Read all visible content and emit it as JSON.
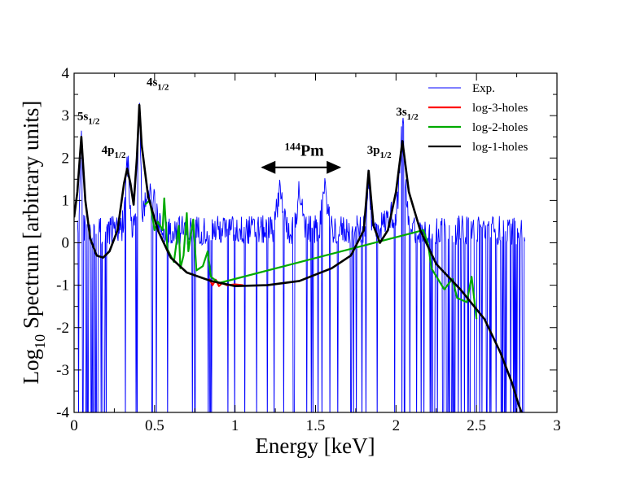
{
  "chart_data": {
    "type": "line",
    "title": "",
    "xlabel": "Energy [keV]",
    "ylabel": {
      "main": "Log",
      "sub": "10",
      "rest": " Spectrum [arbitrary units]"
    },
    "xlim": [
      0,
      3
    ],
    "ylim": [
      -4,
      4
    ],
    "x_ticks": [
      "0",
      "0.5",
      "1",
      "1.5",
      "2",
      "2.5",
      "3"
    ],
    "y_ticks": [
      "4",
      "3",
      "2",
      "1",
      "0",
      "-1",
      "-2",
      "-3",
      "-4"
    ],
    "legend_position": "top-right",
    "series": [
      {
        "name": "Exp.",
        "color": "#0000ff",
        "style": "noisy",
        "x_range": [
          0.0,
          2.8
        ]
      },
      {
        "name": "log-3-holes",
        "color": "#ff0000",
        "points": [
          [
            0.84,
            -0.85
          ],
          [
            0.86,
            -1.0
          ],
          [
            0.88,
            -0.87
          ],
          [
            0.9,
            -1.02
          ],
          [
            0.92,
            -0.95
          ],
          [
            0.95,
            -1.0
          ],
          [
            1.0,
            -0.98
          ],
          [
            1.05,
            -1.0
          ]
        ]
      },
      {
        "name": "log-2-holes",
        "color": "#00aa00",
        "points": [
          [
            0.44,
            0.9
          ],
          [
            0.47,
            1.0
          ],
          [
            0.5,
            0.3
          ],
          [
            0.52,
            0.5
          ],
          [
            0.55,
            0.3
          ],
          [
            0.56,
            1.05
          ],
          [
            0.58,
            -0.15
          ],
          [
            0.62,
            -0.45
          ],
          [
            0.65,
            0.4
          ],
          [
            0.66,
            -0.6
          ],
          [
            0.68,
            -0.3
          ],
          [
            0.7,
            0.7
          ],
          [
            0.71,
            -0.2
          ],
          [
            0.74,
            0.55
          ],
          [
            0.76,
            -0.65
          ],
          [
            0.8,
            -0.55
          ],
          [
            0.83,
            -0.2
          ],
          [
            0.85,
            -0.8
          ],
          [
            0.9,
            -0.95
          ],
          [
            2.17,
            0.3
          ],
          [
            2.2,
            -0.05
          ],
          [
            2.22,
            -0.6
          ],
          [
            2.3,
            -1.1
          ],
          [
            2.35,
            -0.85
          ],
          [
            2.38,
            -1.3
          ],
          [
            2.44,
            -1.4
          ],
          [
            2.47,
            -0.8
          ],
          [
            2.5,
            -1.8
          ]
        ]
      },
      {
        "name": "log-1-holes",
        "color": "#000000",
        "points": [
          [
            0.0,
            0.6
          ],
          [
            0.02,
            1.2
          ],
          [
            0.045,
            2.5
          ],
          [
            0.07,
            1.0
          ],
          [
            0.1,
            0.1
          ],
          [
            0.14,
            -0.3
          ],
          [
            0.18,
            -0.35
          ],
          [
            0.22,
            -0.2
          ],
          [
            0.27,
            0.3
          ],
          [
            0.31,
            1.4
          ],
          [
            0.33,
            1.75
          ],
          [
            0.35,
            1.4
          ],
          [
            0.37,
            0.9
          ],
          [
            0.39,
            2.0
          ],
          [
            0.405,
            3.25
          ],
          [
            0.42,
            2.3
          ],
          [
            0.46,
            1.1
          ],
          [
            0.52,
            0.3
          ],
          [
            0.6,
            -0.35
          ],
          [
            0.7,
            -0.7
          ],
          [
            0.85,
            -0.9
          ],
          [
            1.0,
            -1.02
          ],
          [
            1.2,
            -1.0
          ],
          [
            1.4,
            -0.9
          ],
          [
            1.6,
            -0.6
          ],
          [
            1.72,
            -0.3
          ],
          [
            1.8,
            0.3
          ],
          [
            1.83,
            1.7
          ],
          [
            1.86,
            0.4
          ],
          [
            1.9,
            0.0
          ],
          [
            1.95,
            0.3
          ],
          [
            2.0,
            1.2
          ],
          [
            2.04,
            2.4
          ],
          [
            2.08,
            1.2
          ],
          [
            2.15,
            0.3
          ],
          [
            2.25,
            -0.5
          ],
          [
            2.4,
            -1.1
          ],
          [
            2.55,
            -1.8
          ],
          [
            2.65,
            -2.6
          ],
          [
            2.72,
            -3.3
          ],
          [
            2.76,
            -3.8
          ],
          [
            2.78,
            -4.0
          ]
        ]
      }
    ],
    "annotations": [
      {
        "id": "5s",
        "label": "5s",
        "sub": "1/2",
        "x": 0.02,
        "y": 2.9
      },
      {
        "id": "4p",
        "label": "4p",
        "sub": "1/2",
        "x": 0.17,
        "y": 2.1
      },
      {
        "id": "4s",
        "label": "4s",
        "sub": "1/2",
        "x": 0.45,
        "y": 3.7
      },
      {
        "id": "3p",
        "label": "3p",
        "sub": "1/2",
        "x": 1.82,
        "y": 2.1
      },
      {
        "id": "3s",
        "label": "3s",
        "sub": "1/2",
        "x": 2.0,
        "y": 3.0
      }
    ],
    "isotope": {
      "mass": "144",
      "symbol": "Pm",
      "x": 1.43,
      "y": 2.05
    },
    "range_arrow": {
      "from": 1.17,
      "to": 1.65,
      "y": 1.78
    }
  }
}
